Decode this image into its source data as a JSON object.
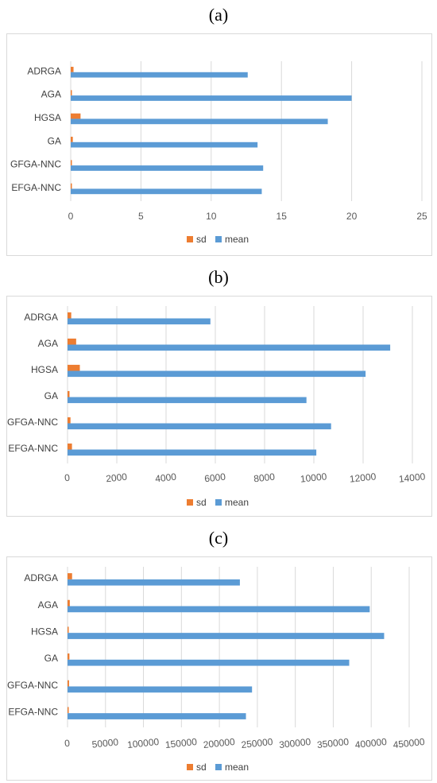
{
  "panels": [
    {
      "label": "(a)"
    },
    {
      "label": "(b)"
    },
    {
      "label": "(c)"
    }
  ],
  "colors": {
    "sd": "#ED7D31",
    "mean": "#5B9BD5",
    "grid": "#d9d9d9"
  },
  "chart_data": [
    {
      "type": "bar",
      "orientation": "horizontal",
      "categories": [
        "ADRGA",
        "AGA",
        "HGSA",
        "GA",
        "GFGA-NNC",
        "EFGA-NNC"
      ],
      "series": [
        {
          "name": "sd",
          "values": [
            0.2,
            0.02,
            0.7,
            0.15,
            0.02,
            0.02
          ]
        },
        {
          "name": "mean",
          "values": [
            12.6,
            20,
            18.3,
            13.3,
            13.7,
            13.6
          ]
        }
      ],
      "xticks": [
        "0",
        "5",
        "10",
        "15",
        "20",
        "25"
      ],
      "xlim": [
        0,
        25
      ],
      "grid": true,
      "legend": "bottom",
      "title": "",
      "xlabel": "",
      "ylabel": ""
    },
    {
      "type": "bar",
      "orientation": "horizontal",
      "categories": [
        "ADRGA",
        "AGA",
        "HGSA",
        "GA",
        "GFGA-NNC",
        "EFGA-NNC"
      ],
      "series": [
        {
          "name": "sd",
          "values": [
            150,
            350,
            500,
            80,
            120,
            180
          ]
        },
        {
          "name": "mean",
          "values": [
            5800,
            13100,
            12100,
            9700,
            10700,
            10100
          ]
        }
      ],
      "xticks": [
        "0",
        "2000",
        "4000",
        "6000",
        "8000",
        "10000",
        "12000",
        "14000"
      ],
      "xlim": [
        0,
        14000
      ],
      "grid": true,
      "legend": "bottom",
      "title": "",
      "xlabel": "",
      "ylabel": ""
    },
    {
      "type": "bar",
      "orientation": "horizontal",
      "categories": [
        "ADRGA",
        "AGA",
        "HGSA",
        "GA",
        "GFGA-NNC",
        "EFGA-NNC"
      ],
      "series": [
        {
          "name": "sd",
          "values": [
            6000,
            3000,
            1000,
            2500,
            2000,
            500
          ]
        },
        {
          "name": "mean",
          "values": [
            227000,
            398000,
            417000,
            371000,
            243000,
            235000
          ]
        }
      ],
      "xticks": [
        "0",
        "50000",
        "100000",
        "150000",
        "200000",
        "250000",
        "300000",
        "350000",
        "400000",
        "450000"
      ],
      "xlim": [
        0,
        450000
      ],
      "grid": true,
      "legend": "bottom",
      "title": "",
      "xlabel": "",
      "ylabel": ""
    }
  ]
}
